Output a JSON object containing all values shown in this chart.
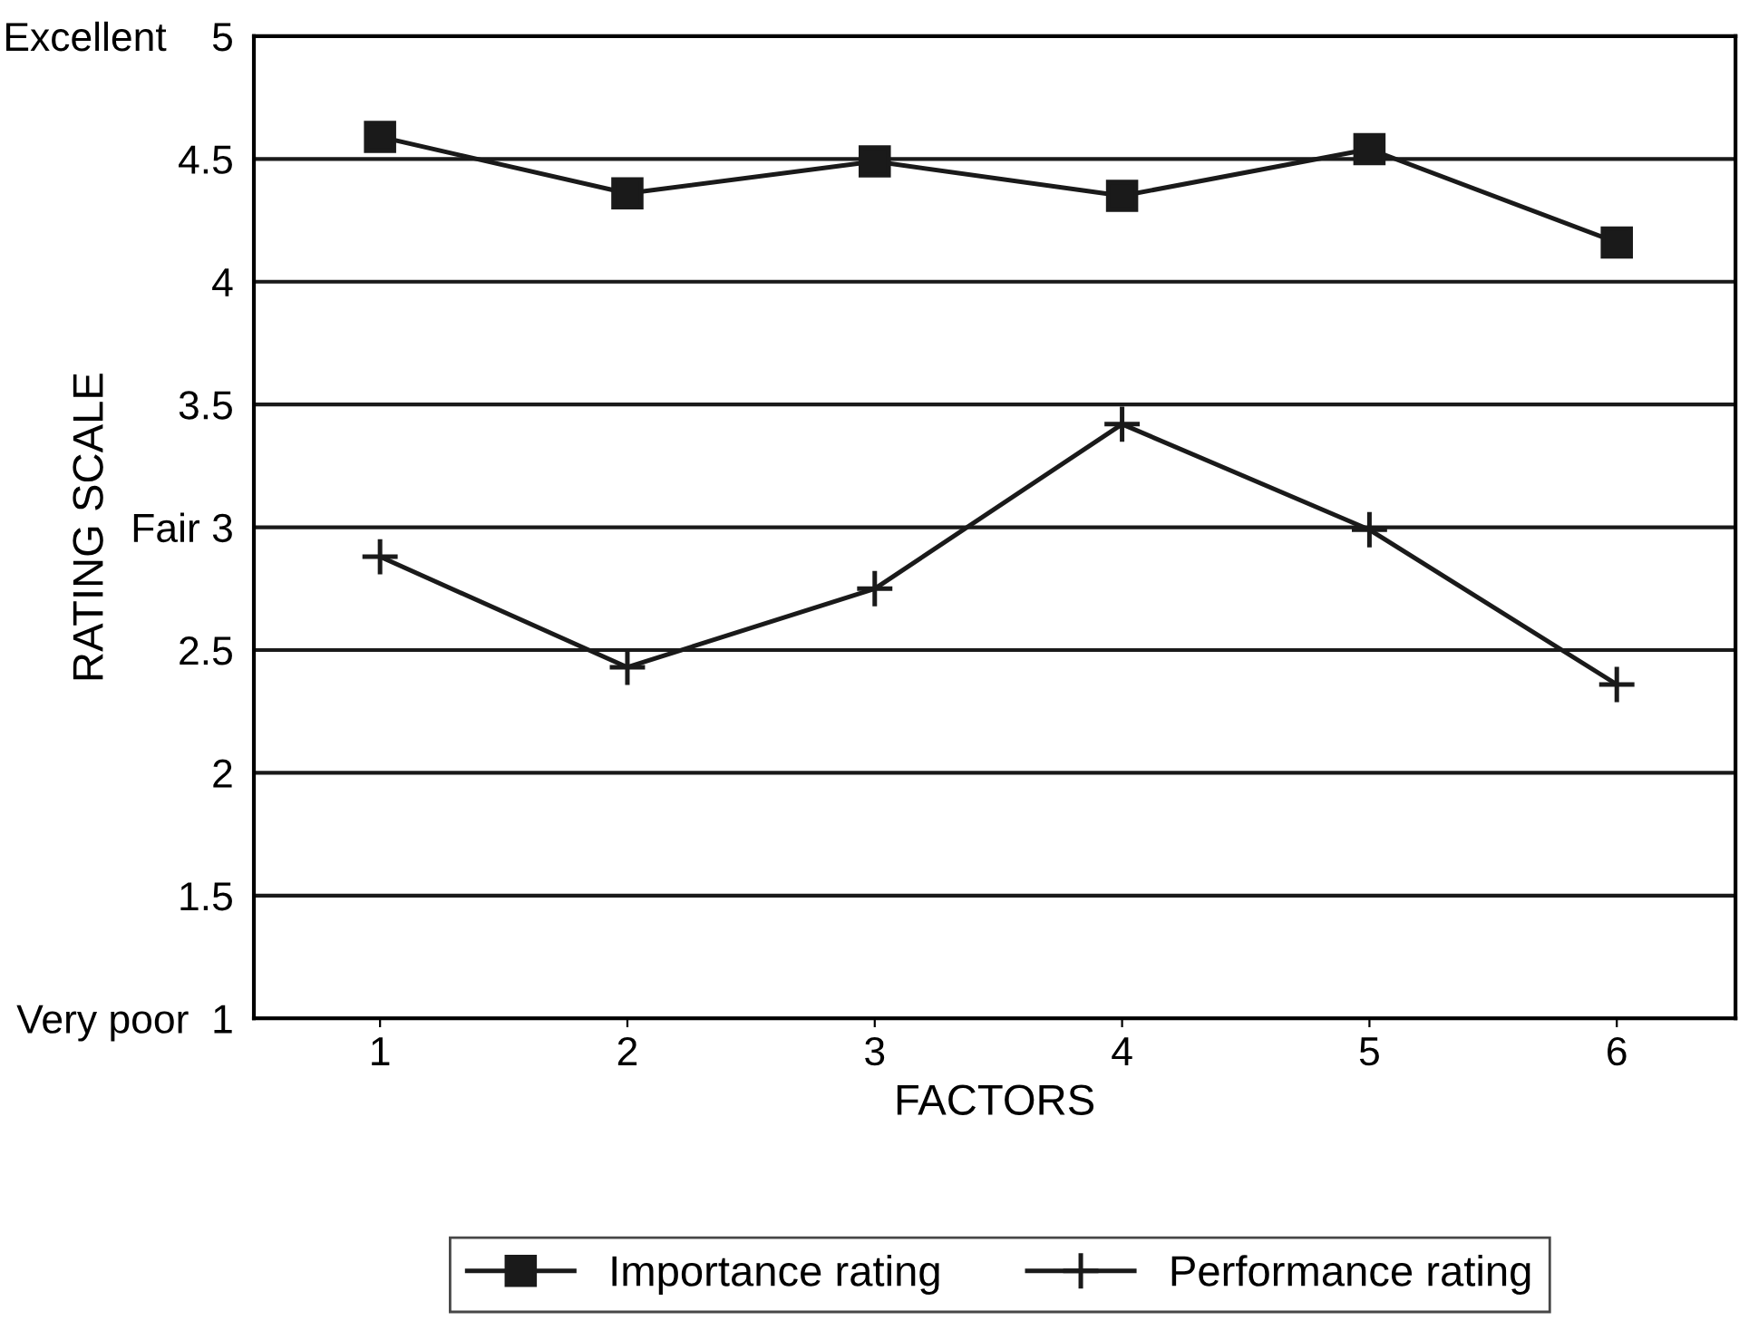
{
  "chart_data": {
    "type": "line",
    "xlabel": "FACTORS",
    "ylabel": "RATING SCALE",
    "categories": [
      "1",
      "2",
      "3",
      "4",
      "5",
      "6"
    ],
    "series": [
      {
        "name": "Importance rating",
        "color": "#1a1a1a",
        "marker": "square",
        "values": [
          4.59,
          4.36,
          4.49,
          4.35,
          4.54,
          4.16
        ]
      },
      {
        "name": "Performance rating",
        "color": "#1a1a1a",
        "marker": "cross",
        "values": [
          2.88,
          2.43,
          2.75,
          3.42,
          2.99,
          2.36
        ]
      }
    ],
    "ylim": [
      1,
      5
    ],
    "yticks": [
      {
        "value": 1,
        "label": "Very poor  1"
      },
      1.5,
      2,
      2.5,
      {
        "value": 3,
        "label": "Fair 3"
      },
      3.5,
      4,
      4.5,
      {
        "value": 5,
        "label": "Excellent    5"
      }
    ],
    "grid": "y",
    "legend": "bottom",
    "line_style": "solid"
  }
}
